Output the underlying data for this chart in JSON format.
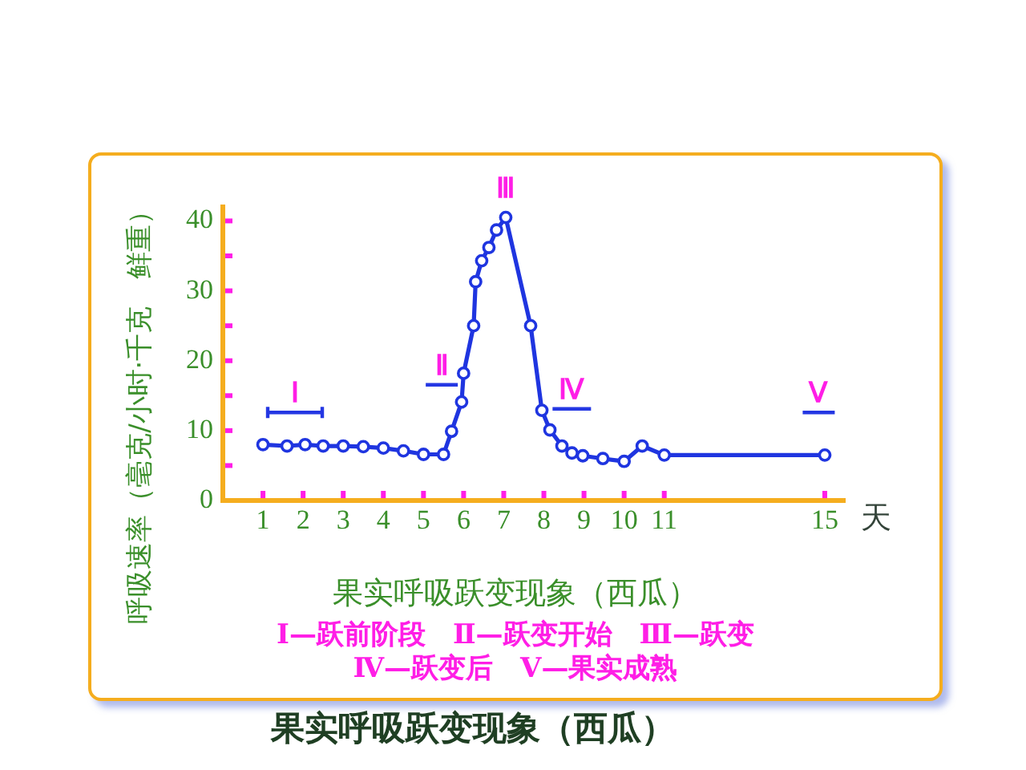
{
  "chart_data": {
    "type": "line",
    "title": "果实呼吸跃变现象（西瓜）",
    "subtitle": "果实呼吸跃变现象（西瓜）",
    "xlabel": "天",
    "ylabel": "呼吸速率（毫克/小时·千克　鲜重）",
    "x": [
      1.0,
      1.6,
      2.05,
      2.5,
      3.0,
      3.5,
      4.0,
      4.5,
      5.0,
      5.5,
      5.7,
      5.95,
      6.0,
      6.25,
      6.3,
      6.45,
      6.63,
      6.82,
      7.05,
      7.67,
      7.95,
      8.15,
      8.45,
      8.7,
      8.97,
      9.47,
      10.0,
      10.45,
      11.0,
      15.0
    ],
    "values": [
      8.0,
      7.8,
      8.0,
      7.8,
      7.8,
      7.7,
      7.5,
      7.1,
      6.6,
      6.6,
      9.9,
      14.1,
      18.2,
      25.0,
      31.3,
      34.3,
      36.2,
      38.7,
      40.5,
      25.0,
      12.9,
      10.1,
      7.8,
      6.8,
      6.4,
      6.0,
      5.6,
      7.8,
      6.5,
      6.5
    ],
    "color": "#1f35e0",
    "marker": "circle",
    "xlim": [
      0,
      15.5
    ],
    "ylim": [
      0,
      42
    ],
    "xticks": [
      1,
      2,
      3,
      4,
      5,
      6,
      7,
      8,
      9,
      10,
      11,
      15
    ],
    "yticks": [
      0,
      {
        "value": 5,
        "label": null
      },
      10,
      {
        "value": 15,
        "label": null
      },
      20,
      {
        "value": 25,
        "label": null
      },
      30,
      {
        "value": 35,
        "label": null
      },
      40
    ],
    "annotations": [
      {
        "text": "Ⅲ",
        "x": 7.05,
        "y": 40.5
      },
      "Ⅰ",
      "Ⅱ",
      "Ⅳ",
      "Ⅴ",
      "Ⅰ—跃前阶段　Ⅱ—跃变开始　Ⅲ—跃变",
      "Ⅳ—跃变后　Ⅴ—果实成熟"
    ]
  }
}
